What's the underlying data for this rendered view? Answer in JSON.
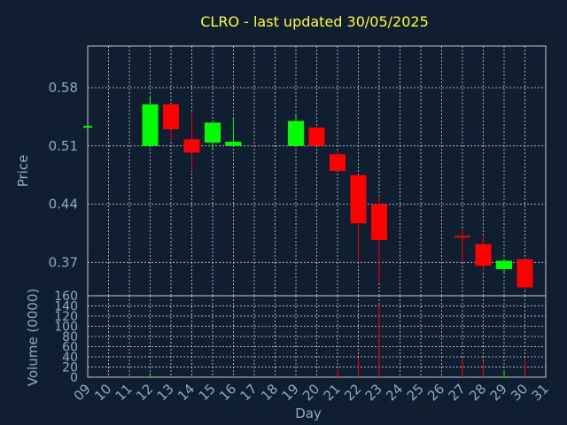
{
  "chart_data": [
    {
      "type": "candlestick",
      "title": "CLRO - last updated 30/05/2025",
      "ylabel": "Price",
      "ylim": [
        0.33,
        0.63
      ],
      "yticks": [
        0.37,
        0.44,
        0.51,
        0.58
      ],
      "ytick_labels": [
        "0.37",
        "0.44",
        "0.51",
        "0.58"
      ],
      "grid": true,
      "up_color": "#00ff00",
      "down_color": "#ff0000",
      "days": [
        9,
        10,
        11,
        12,
        13,
        14,
        15,
        16,
        17,
        18,
        19,
        20,
        21,
        22,
        23,
        24,
        25,
        26,
        27,
        28,
        29,
        30,
        31
      ],
      "day_labels": [
        "09",
        "10",
        "11",
        "12",
        "13",
        "14",
        "15",
        "16",
        "17",
        "18",
        "19",
        "20",
        "21",
        "22",
        "23",
        "24",
        "25",
        "26",
        "27",
        "28",
        "29",
        "30",
        "31"
      ],
      "candles": [
        {
          "day": 9,
          "open": 0.534,
          "high": 0.534,
          "low": 0.534,
          "close": 0.534
        },
        {
          "day": 12,
          "open": 0.51,
          "high": 0.57,
          "low": 0.51,
          "close": 0.56
        },
        {
          "day": 13,
          "open": 0.56,
          "high": 0.56,
          "low": 0.518,
          "close": 0.53
        },
        {
          "day": 14,
          "open": 0.518,
          "high": 0.55,
          "low": 0.48,
          "close": 0.502
        },
        {
          "day": 15,
          "open": 0.514,
          "high": 0.54,
          "low": 0.505,
          "close": 0.538
        },
        {
          "day": 16,
          "open": 0.51,
          "high": 0.545,
          "low": 0.51,
          "close": 0.515
        },
        {
          "day": 19,
          "open": 0.51,
          "high": 0.548,
          "low": 0.51,
          "close": 0.54
        },
        {
          "day": 20,
          "open": 0.532,
          "high": 0.532,
          "low": 0.51,
          "close": 0.51
        },
        {
          "day": 21,
          "open": 0.5,
          "high": 0.505,
          "low": 0.48,
          "close": 0.48
        },
        {
          "day": 22,
          "open": 0.475,
          "high": 0.475,
          "low": 0.37,
          "close": 0.417
        },
        {
          "day": 23,
          "open": 0.44,
          "high": 0.45,
          "low": 0.345,
          "close": 0.397
        },
        {
          "day": 27,
          "open": 0.402,
          "high": 0.41,
          "low": 0.37,
          "close": 0.4
        },
        {
          "day": 28,
          "open": 0.392,
          "high": 0.4,
          "low": 0.36,
          "close": 0.366
        },
        {
          "day": 29,
          "open": 0.362,
          "high": 0.374,
          "low": 0.356,
          "close": 0.372
        },
        {
          "day": 30,
          "open": 0.374,
          "high": 0.374,
          "low": 0.338,
          "close": 0.34
        }
      ]
    },
    {
      "type": "bar",
      "ylabel": "Volume (0000)",
      "xlabel": "Day",
      "ylim": [
        0,
        160
      ],
      "yticks": [
        0,
        20,
        40,
        60,
        80,
        100,
        120,
        140,
        160
      ],
      "ytick_labels": [
        "0",
        "20",
        "40",
        "60",
        "80",
        "100",
        "120",
        "140",
        "160"
      ],
      "grid": true,
      "volumes": [
        {
          "day": 12,
          "value": 8,
          "color": "#00ff00"
        },
        {
          "day": 14,
          "value": 4,
          "color": "#ff0000"
        },
        {
          "day": 21,
          "value": 14,
          "color": "#ff0000"
        },
        {
          "day": 22,
          "value": 38,
          "color": "#ff0000"
        },
        {
          "day": 23,
          "value": 143,
          "color": "#ff0000"
        },
        {
          "day": 27,
          "value": 38,
          "color": "#ff0000"
        },
        {
          "day": 28,
          "value": 32,
          "color": "#ff0000"
        },
        {
          "day": 29,
          "value": 14,
          "color": "#00ff00"
        },
        {
          "day": 30,
          "value": 38,
          "color": "#ff0000"
        }
      ]
    }
  ]
}
